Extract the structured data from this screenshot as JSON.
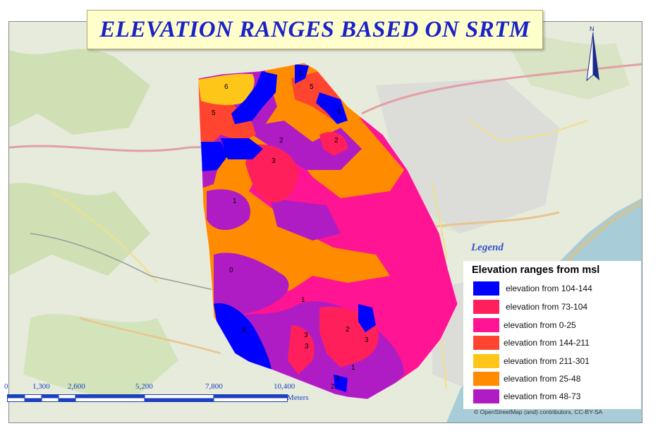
{
  "title": "ELEVATION RANGES BASED ON SRTM",
  "north_arrow": {
    "letter": "N"
  },
  "legend": {
    "heading": "Legend",
    "title": "Elevation ranges from msl",
    "items": [
      {
        "label": "elevation from 104-144",
        "color": "#0000ff"
      },
      {
        "label": "elevation from 73-104",
        "color": "#ff1f5a"
      },
      {
        "label": "elevation from 0-25",
        "color": "#ff1493"
      },
      {
        "label": "elevation from 144-211",
        "color": "#ff4430"
      },
      {
        "label": "elevation from 211-301",
        "color": "#ffc61a"
      },
      {
        "label": "elevation from 25-48",
        "color": "#ff8c00"
      },
      {
        "label": "elevation from 48-73",
        "color": "#b01cc4"
      }
    ]
  },
  "scale_bar": {
    "ticks": [
      "0",
      "1,300",
      "2,600",
      "5,200",
      "7,800",
      "10,400"
    ],
    "units": "Meters"
  },
  "zone_labels": [
    "6",
    "5",
    "3",
    "5",
    "5",
    "2",
    "3",
    "2",
    "1",
    "0",
    "1",
    "4",
    "3",
    "3",
    "2",
    "3",
    "1",
    "1",
    "2"
  ],
  "attribution": "© OpenStreetMap (and) contributors, CC-BY-SA"
}
